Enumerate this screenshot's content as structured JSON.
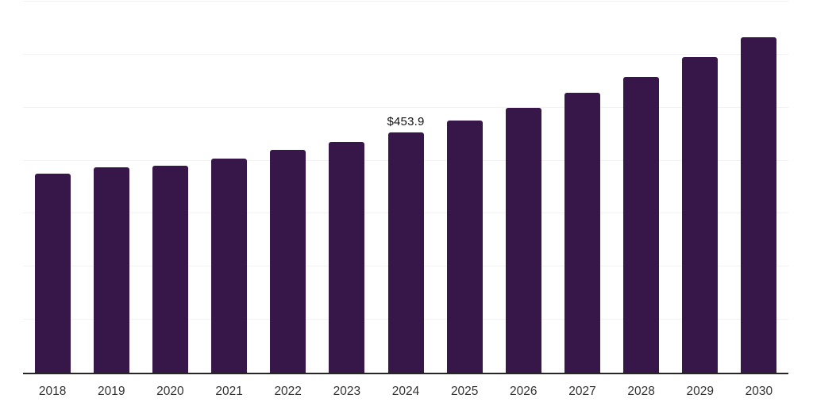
{
  "chart_data": {
    "type": "bar",
    "categories": [
      "2018",
      "2019",
      "2020",
      "2021",
      "2022",
      "2023",
      "2024",
      "2025",
      "2026",
      "2027",
      "2028",
      "2029",
      "2030"
    ],
    "values": [
      376,
      387,
      390,
      404,
      420,
      435,
      453.9,
      476,
      500,
      527.5,
      558,
      595,
      633
    ],
    "annotation": {
      "category": "2024",
      "index": 6,
      "text": "$453.9"
    },
    "ylim": [
      0,
      700
    ],
    "gridline_step": 100,
    "grid": "horizontal-only",
    "legend": "none",
    "y_axis_tick_labels": "none"
  },
  "colors": {
    "bar": "#371649",
    "gridline": "#f2f2f2",
    "axis_line": "#262626",
    "tick_label": "#333333",
    "data_label": "#111111",
    "background": "#ffffff"
  }
}
